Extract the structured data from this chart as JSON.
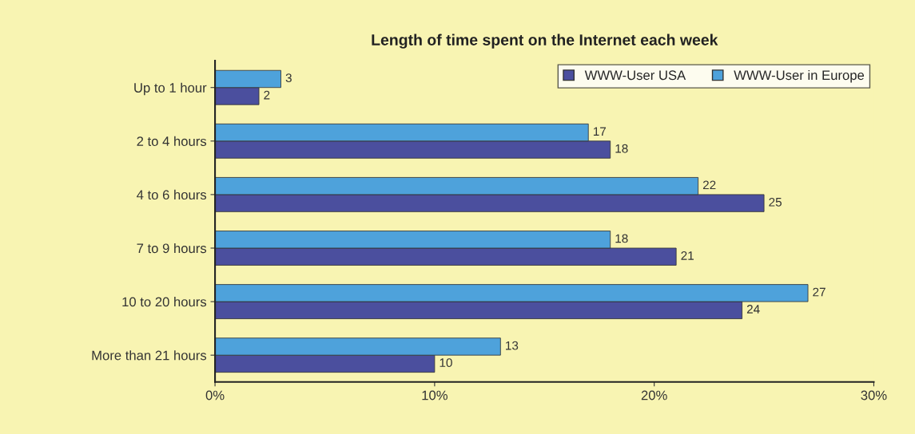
{
  "chart_data": {
    "type": "bar",
    "orientation": "horizontal",
    "title": "Length of time spent on the Internet each week",
    "categories": [
      "Up to 1 hour",
      "2 to 4 hours",
      "4 to 6 hours",
      "7 to 9 hours",
      "10 to 20 hours",
      "More than 21 hours"
    ],
    "series": [
      {
        "name": "WWW-User USA",
        "color": "#4b4f9e",
        "values": [
          2,
          18,
          25,
          21,
          24,
          10
        ]
      },
      {
        "name": "WWW-User in Europe",
        "color": "#4ea2db",
        "values": [
          3,
          17,
          22,
          18,
          27,
          13
        ]
      }
    ],
    "xlim": [
      0,
      30
    ],
    "xticks": [
      {
        "value": 0,
        "label": "0%"
      },
      {
        "value": 10,
        "label": "10%"
      },
      {
        "value": 20,
        "label": "20%"
      },
      {
        "value": 30,
        "label": "30%"
      }
    ],
    "data_labels": true,
    "legend": "top right",
    "grid": false
  }
}
